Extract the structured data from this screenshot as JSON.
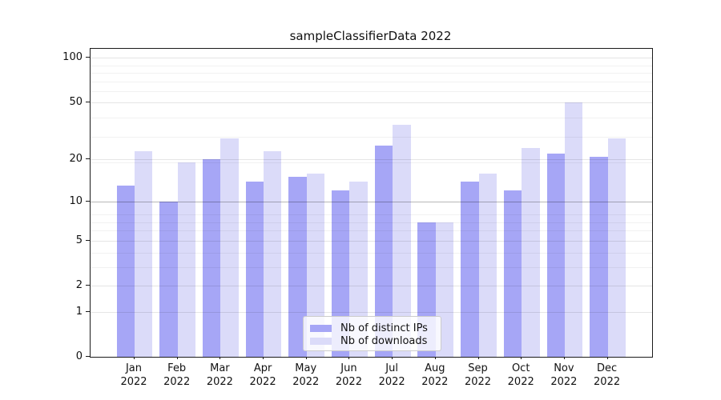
{
  "title": "sampleClassifierData 2022",
  "chart_data": {
    "type": "bar",
    "title": "sampleClassifierData 2022",
    "categories": [
      "Jan",
      "Feb",
      "Mar",
      "Apr",
      "May",
      "Jun",
      "Jul",
      "Aug",
      "Sep",
      "Oct",
      "Nov",
      "Dec"
    ],
    "year_label": "2022",
    "series": [
      {
        "name": "Nb of distinct IPs",
        "color": "#a6a6f6",
        "values": [
          13,
          10,
          20,
          14,
          15,
          12,
          25,
          7,
          14,
          12,
          22,
          21
        ]
      },
      {
        "name": "Nb of downloads",
        "color": "#dbdbf9",
        "values": [
          23,
          19,
          28,
          23,
          16,
          14,
          35,
          7,
          16,
          24,
          50,
          28
        ]
      }
    ],
    "yscale": "log(1+x)",
    "yticks": [
      100,
      50,
      20,
      10,
      5,
      2,
      1,
      0
    ],
    "ylim": [
      0,
      115
    ],
    "grid": true,
    "legend_position": "lower center",
    "colors": {
      "grid_minor": "rgba(0,0,0,0.055)",
      "grid_major": "rgba(0,0,0,0.10)",
      "grid_emphasis_at_10": "rgba(0,0,0,0.28)",
      "axis": "#1a1a1a",
      "background": "#ffffff"
    }
  }
}
